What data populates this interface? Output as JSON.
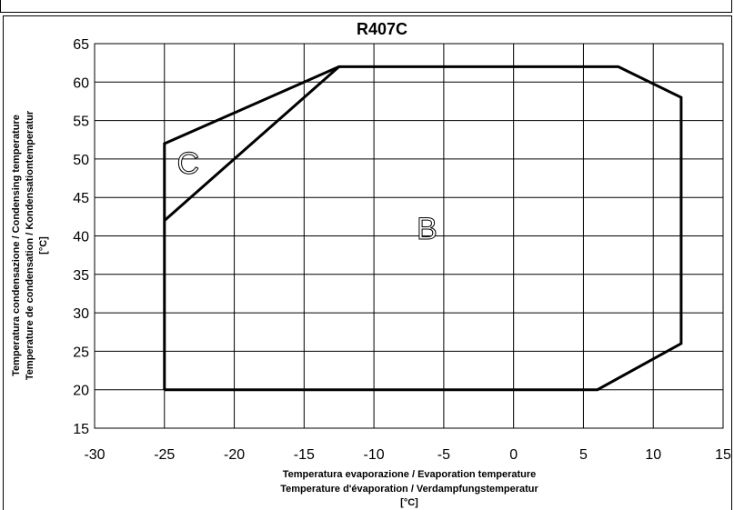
{
  "chart_data": {
    "type": "line",
    "title": "R407C",
    "xlabel_lines": [
      "Temperatura evaporazione / Evaporation temperature",
      "Temperature d'évaporation / Verdampfungstemperatur",
      "[°C]"
    ],
    "ylabel_lines": [
      "Temperatura condensazione / Condensing temperature",
      "Temperature de condensation / Kondensationtemperatur",
      "[°C]"
    ],
    "xlim": [
      -30,
      15
    ],
    "ylim": [
      15,
      65
    ],
    "x_ticks": [
      "-30",
      "-25",
      "-20",
      "-15",
      "-10",
      "-5",
      "0",
      "5",
      "10",
      "15"
    ],
    "y_ticks": [
      "15",
      "20",
      "25",
      "30",
      "35",
      "40",
      "45",
      "50",
      "55",
      "60",
      "65"
    ],
    "grid": true,
    "series": [
      {
        "points": [
          [
            -25,
            20
          ],
          [
            6,
            20
          ],
          [
            12,
            26
          ],
          [
            12,
            58
          ],
          [
            7.5,
            62
          ],
          [
            -12.5,
            62
          ],
          [
            -25,
            52
          ],
          [
            -25,
            20
          ]
        ]
      },
      {
        "points": [
          [
            -25,
            42
          ],
          [
            -12.5,
            62
          ]
        ]
      }
    ],
    "region_labels": [
      {
        "text": "C",
        "x": -23.3,
        "y": 49.5
      },
      {
        "text": "B",
        "x": -6.2,
        "y": 41
      }
    ]
  }
}
